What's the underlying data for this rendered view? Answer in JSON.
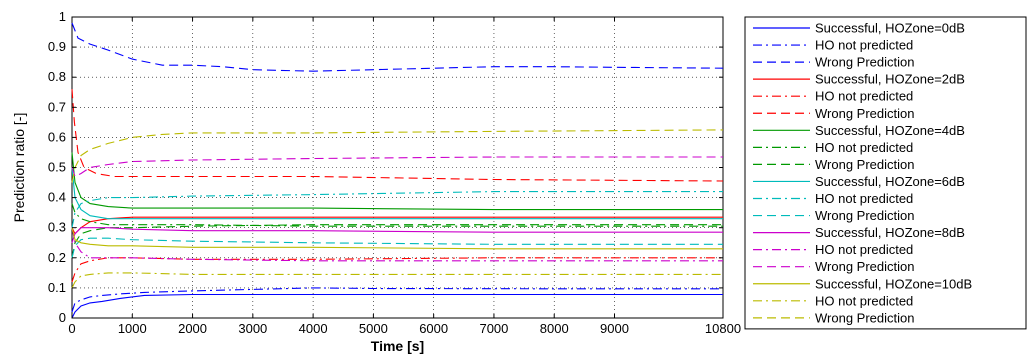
{
  "chart_data": {
    "type": "line",
    "title": "",
    "xlabel": "Time [s]",
    "ylabel": "Prediction ratio [-]",
    "xlim": [
      0,
      10800
    ],
    "ylim": [
      0,
      1
    ],
    "xticks": [
      0,
      1000,
      2000,
      3000,
      4000,
      5000,
      6000,
      7000,
      8000,
      9000,
      10800
    ],
    "xtick_labels": [
      "0",
      "1000",
      "2000",
      "3000",
      "4000",
      "5000",
      "6000",
      "7000",
      "8000",
      "9000",
      "10800"
    ],
    "yticks": [
      0,
      0.1,
      0.2,
      0.3,
      0.4,
      0.5,
      0.6,
      0.7,
      0.8,
      0.9,
      1
    ],
    "ytick_labels": [
      "0",
      "0.1",
      "0.2",
      "0.3",
      "0.4",
      "0.5",
      "0.6",
      "0.7",
      "0.8",
      "0.9",
      "1"
    ],
    "grid": true,
    "legend_position": "outside-right",
    "series": [
      {
        "name": "Successful, HOZone=0dB",
        "color": "#0000ff",
        "dash": "solid",
        "x": [
          0,
          50,
          150,
          300,
          500,
          800,
          1200,
          2000,
          3000,
          5000,
          8000,
          10800
        ],
        "y": [
          0,
          0.02,
          0.04,
          0.05,
          0.055,
          0.065,
          0.075,
          0.078,
          0.078,
          0.078,
          0.078,
          0.078
        ]
      },
      {
        "name": "HO not predicted",
        "color": "#0000ff",
        "dash": "dashdot",
        "x": [
          0,
          50,
          150,
          300,
          500,
          800,
          1200,
          2000,
          3000,
          4000,
          5000,
          8000,
          10800
        ],
        "y": [
          0.02,
          0.05,
          0.06,
          0.07,
          0.075,
          0.08,
          0.085,
          0.09,
          0.095,
          0.1,
          0.098,
          0.097,
          0.097
        ]
      },
      {
        "name": "Wrong Prediction",
        "color": "#0000ff",
        "dash": "dashed",
        "x": [
          0,
          20,
          100,
          300,
          600,
          1000,
          1500,
          2000,
          2500,
          3000,
          4000,
          5000,
          6000,
          7000,
          8000,
          9000,
          10800
        ],
        "y": [
          0.98,
          0.97,
          0.93,
          0.91,
          0.89,
          0.86,
          0.84,
          0.84,
          0.835,
          0.825,
          0.82,
          0.825,
          0.83,
          0.835,
          0.835,
          0.833,
          0.83
        ]
      },
      {
        "name": "Successful, HOZone=2dB",
        "color": "#ff0000",
        "dash": "solid",
        "x": [
          0,
          50,
          150,
          300,
          600,
          1000,
          2000,
          4000,
          7000,
          10800
        ],
        "y": [
          0.3,
          0.28,
          0.3,
          0.32,
          0.33,
          0.335,
          0.335,
          0.335,
          0.335,
          0.335
        ]
      },
      {
        "name": "HO not predicted",
        "color": "#ff0000",
        "dash": "dashdot",
        "x": [
          0,
          50,
          150,
          300,
          600,
          1000,
          2000,
          4000,
          7000,
          10800
        ],
        "y": [
          0.12,
          0.15,
          0.18,
          0.19,
          0.2,
          0.2,
          0.195,
          0.195,
          0.2,
          0.2
        ]
      },
      {
        "name": "Wrong Prediction",
        "color": "#ff0000",
        "dash": "dashed",
        "x": [
          0,
          40,
          100,
          200,
          400,
          700,
          1000,
          2000,
          4000,
          7000,
          10800
        ],
        "y": [
          0.76,
          0.65,
          0.55,
          0.5,
          0.48,
          0.47,
          0.47,
          0.47,
          0.47,
          0.46,
          0.455
        ]
      },
      {
        "name": "Successful, HOZone=4dB",
        "color": "#009900",
        "dash": "solid",
        "x": [
          0,
          50,
          150,
          300,
          600,
          1000,
          2000,
          4000,
          7000,
          10800
        ],
        "y": [
          0.55,
          0.45,
          0.4,
          0.38,
          0.37,
          0.365,
          0.365,
          0.365,
          0.36,
          0.36
        ]
      },
      {
        "name": "HO not predicted",
        "color": "#009900",
        "dash": "dashdot",
        "x": [
          0,
          50,
          150,
          300,
          600,
          1000,
          2000,
          4000,
          7000,
          10800
        ],
        "y": [
          0.38,
          0.35,
          0.33,
          0.32,
          0.31,
          0.31,
          0.31,
          0.305,
          0.305,
          0.305
        ]
      },
      {
        "name": "Wrong Prediction",
        "color": "#009900",
        "dash": "dashed",
        "x": [
          0,
          50,
          150,
          300,
          600,
          1000,
          2000,
          4000,
          7000,
          10800
        ],
        "y": [
          0.2,
          0.25,
          0.28,
          0.29,
          0.3,
          0.3,
          0.305,
          0.31,
          0.31,
          0.31
        ]
      },
      {
        "name": "Successful, HOZone=6dB",
        "color": "#00bbbb",
        "dash": "solid",
        "x": [
          0,
          50,
          150,
          300,
          600,
          1000,
          2000,
          4000,
          7000,
          10800
        ],
        "y": [
          0.5,
          0.4,
          0.36,
          0.34,
          0.33,
          0.33,
          0.33,
          0.33,
          0.33,
          0.33
        ]
      },
      {
        "name": "HO not predicted",
        "color": "#00bbbb",
        "dash": "dashdot",
        "x": [
          0,
          50,
          150,
          300,
          600,
          1000,
          2000,
          4000,
          7000,
          10800
        ],
        "y": [
          0.3,
          0.35,
          0.38,
          0.39,
          0.4,
          0.4,
          0.405,
          0.41,
          0.42,
          0.42
        ]
      },
      {
        "name": "Wrong Prediction",
        "color": "#00bbbb",
        "dash": "dashed",
        "x": [
          0,
          50,
          150,
          300,
          600,
          1000,
          2000,
          4000,
          7000,
          10800
        ],
        "y": [
          0.2,
          0.24,
          0.26,
          0.265,
          0.265,
          0.26,
          0.255,
          0.25,
          0.245,
          0.245
        ]
      },
      {
        "name": "Successful, HOZone=8dB",
        "color": "#cc00cc",
        "dash": "solid",
        "x": [
          0,
          50,
          150,
          300,
          600,
          1000,
          2000,
          4000,
          7000,
          10800
        ],
        "y": [
          0.25,
          0.28,
          0.3,
          0.3,
          0.3,
          0.295,
          0.29,
          0.29,
          0.285,
          0.285
        ]
      },
      {
        "name": "HO not predicted",
        "color": "#cc00cc",
        "dash": "dashdot",
        "x": [
          0,
          50,
          150,
          300,
          600,
          1000,
          2000,
          4000,
          7000,
          10800
        ],
        "y": [
          0.3,
          0.25,
          0.22,
          0.2,
          0.2,
          0.2,
          0.195,
          0.19,
          0.19,
          0.19
        ]
      },
      {
        "name": "Wrong Prediction",
        "color": "#cc00cc",
        "dash": "dashed",
        "x": [
          0,
          50,
          150,
          300,
          600,
          1000,
          2000,
          4000,
          7000,
          10800
        ],
        "y": [
          0.5,
          0.47,
          0.48,
          0.5,
          0.51,
          0.52,
          0.525,
          0.53,
          0.535,
          0.535
        ]
      },
      {
        "name": "Successful, HOZone=10dB",
        "color": "#bbbb00",
        "dash": "solid",
        "x": [
          0,
          50,
          150,
          300,
          600,
          1000,
          2000,
          4000,
          7000,
          10800
        ],
        "y": [
          0.3,
          0.26,
          0.25,
          0.245,
          0.24,
          0.24,
          0.235,
          0.235,
          0.23,
          0.23
        ]
      },
      {
        "name": "HO not predicted",
        "color": "#bbbb00",
        "dash": "dashdot",
        "x": [
          0,
          50,
          150,
          300,
          600,
          1000,
          2000,
          4000,
          7000,
          10800
        ],
        "y": [
          0.1,
          0.12,
          0.14,
          0.145,
          0.15,
          0.15,
          0.145,
          0.145,
          0.145,
          0.145
        ]
      },
      {
        "name": "Wrong Prediction",
        "color": "#bbbb00",
        "dash": "dashed",
        "x": [
          0,
          50,
          150,
          300,
          600,
          1000,
          1500,
          2000,
          3000,
          4000,
          7000,
          10800
        ],
        "y": [
          0.45,
          0.5,
          0.54,
          0.56,
          0.58,
          0.6,
          0.61,
          0.615,
          0.615,
          0.615,
          0.62,
          0.625
        ]
      }
    ]
  }
}
